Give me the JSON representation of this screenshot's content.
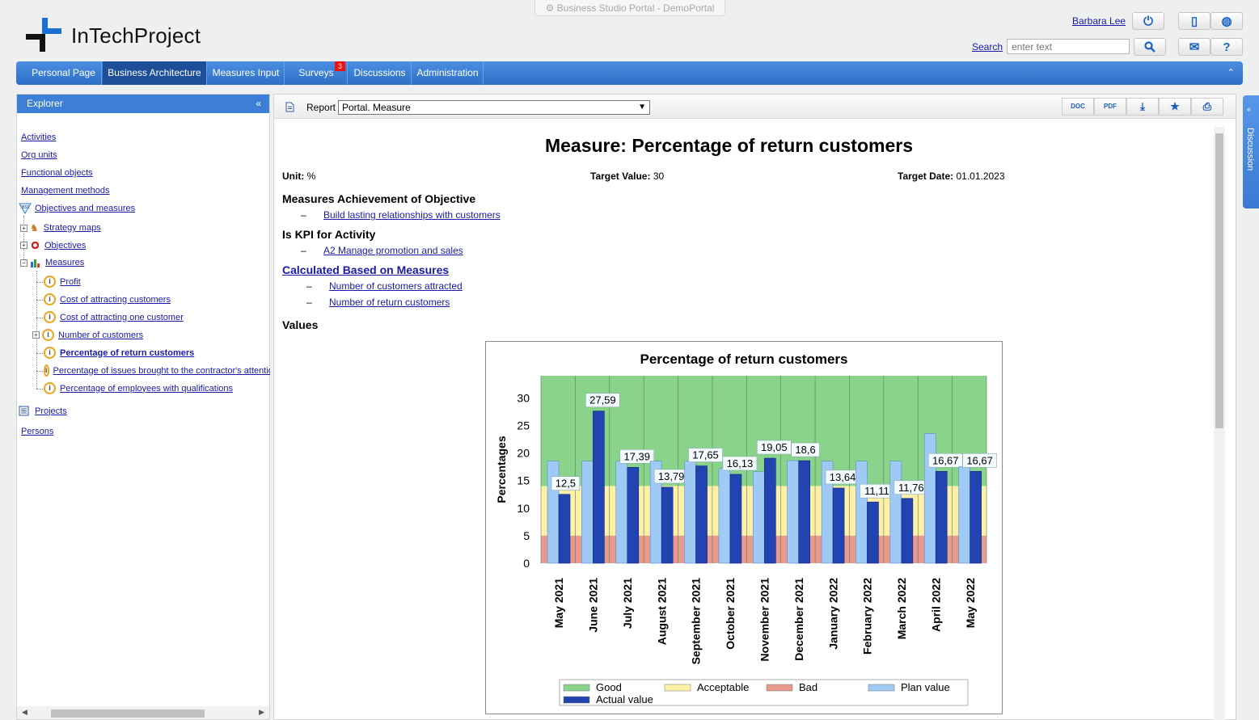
{
  "window": {
    "portal_title": "Business Studio Portal - DemoPortal"
  },
  "brand": {
    "logo_text": "InTechProject"
  },
  "header": {
    "user_name": "Barbara Lee",
    "search_label": "Search",
    "search_placeholder": "enter text",
    "icons": [
      "power-icon",
      "mobile-icon",
      "globe-icon",
      "search-icon",
      "mail-icon",
      "help-icon"
    ]
  },
  "menu": {
    "items": [
      {
        "label": "Personal Page"
      },
      {
        "label": "Business Architecture"
      },
      {
        "label": "Measures Input"
      },
      {
        "label": "Surveys"
      },
      {
        "label": "Discussions"
      },
      {
        "label": "Administration"
      }
    ],
    "surveys_badge": "3",
    "collapse_glyph": "⌃"
  },
  "explorer": {
    "title": "Explorer",
    "collapse_glyph": "«",
    "items": [
      {
        "label": "Activities"
      },
      {
        "label": "Org units"
      },
      {
        "label": "Functional objects"
      },
      {
        "label": "Management methods"
      },
      {
        "label": "Objectives and measures"
      },
      {
        "label": "Strategy maps"
      },
      {
        "label": "Objectives"
      },
      {
        "label": "Measures"
      },
      {
        "label": "Profit"
      },
      {
        "label": "Cost of attracting customers"
      },
      {
        "label": "Cost of attracting one customer"
      },
      {
        "label": "Number of customers"
      },
      {
        "label": "Percentage of return customers"
      },
      {
        "label": "Percentage of issues brought to the contractor's attention"
      },
      {
        "label": "Percentage of employees with qualifications"
      },
      {
        "label": "Projects"
      },
      {
        "label": "Persons"
      }
    ]
  },
  "toolbar": {
    "report_label": "Report",
    "report_value": "Portal. Measure",
    "buttons": [
      {
        "label": "DOC"
      },
      {
        "label": "PDF"
      },
      {
        "label": "⤓"
      },
      {
        "label": "★"
      },
      {
        "label": "⎙"
      }
    ]
  },
  "report": {
    "title": "Measure: Percentage of return customers",
    "unit_label": "Unit:",
    "unit_value": "%",
    "target_value_label": "Target Value:",
    "target_value": "30",
    "target_date_label": "Target Date:",
    "target_date": "01.01.2023",
    "section_objective": "Measures Achievement of Objective",
    "objective_link": "Build lasting relationships with customers",
    "section_kpi": "Is KPI for Activity",
    "kpi_link": "A2 Manage promotion and sales",
    "section_calculated": "Calculated Based on Measures",
    "calc_links": [
      "Number of customers attracted",
      "Number of return customers"
    ],
    "dash": "–",
    "section_values": "Values"
  },
  "discussion": {
    "label": "Discussion",
    "glyph": "«"
  },
  "chart_data": {
    "type": "bar",
    "title": "Percentage of return customers",
    "ylabel": "Percentages",
    "xlabel": "",
    "ylim": [
      0,
      34
    ],
    "yticks": [
      0,
      5,
      10,
      15,
      20,
      25,
      30
    ],
    "zones": {
      "bad_max": 5,
      "acceptable_max": 14,
      "bad_color": "#e89a8c",
      "acceptable_color": "#fff0a8",
      "good_color": "#8ad38a"
    },
    "categories": [
      "May 2021",
      "June 2021",
      "July 2021",
      "August 2021",
      "September 2021",
      "October 2021",
      "November 2021",
      "December 2021",
      "January 2022",
      "February 2022",
      "March 2022",
      "April 2022",
      "May 2022"
    ],
    "series": [
      {
        "name": "Plan value",
        "color": "#9fcaf5",
        "values": [
          18.5,
          18.5,
          18.5,
          18.5,
          18.5,
          17.2,
          16.6,
          18.6,
          18.5,
          18.5,
          18.5,
          23.5,
          17.5
        ]
      },
      {
        "name": "Actual value",
        "color": "#2244b0",
        "values": [
          12.5,
          27.59,
          17.39,
          13.79,
          17.65,
          16.13,
          19.05,
          18.6,
          13.64,
          11.11,
          11.76,
          16.67,
          16.67
        ]
      }
    ],
    "data_labels": [
      "12,5",
      "27,59",
      "17,39",
      "13,79",
      "17,65",
      "16,13",
      "19,05",
      "18,6",
      "13,64",
      "11,11",
      "11,76",
      "16,67",
      "16,67"
    ],
    "legend": [
      {
        "name": "Good",
        "color": "#8ad38a"
      },
      {
        "name": "Acceptable",
        "color": "#fff0a8"
      },
      {
        "name": "Bad",
        "color": "#e89a8c"
      },
      {
        "name": "Plan value",
        "color": "#9fcaf5"
      },
      {
        "name": "Actual value",
        "color": "#2244b0"
      }
    ],
    "legend_position": "bottom",
    "grid": true
  }
}
